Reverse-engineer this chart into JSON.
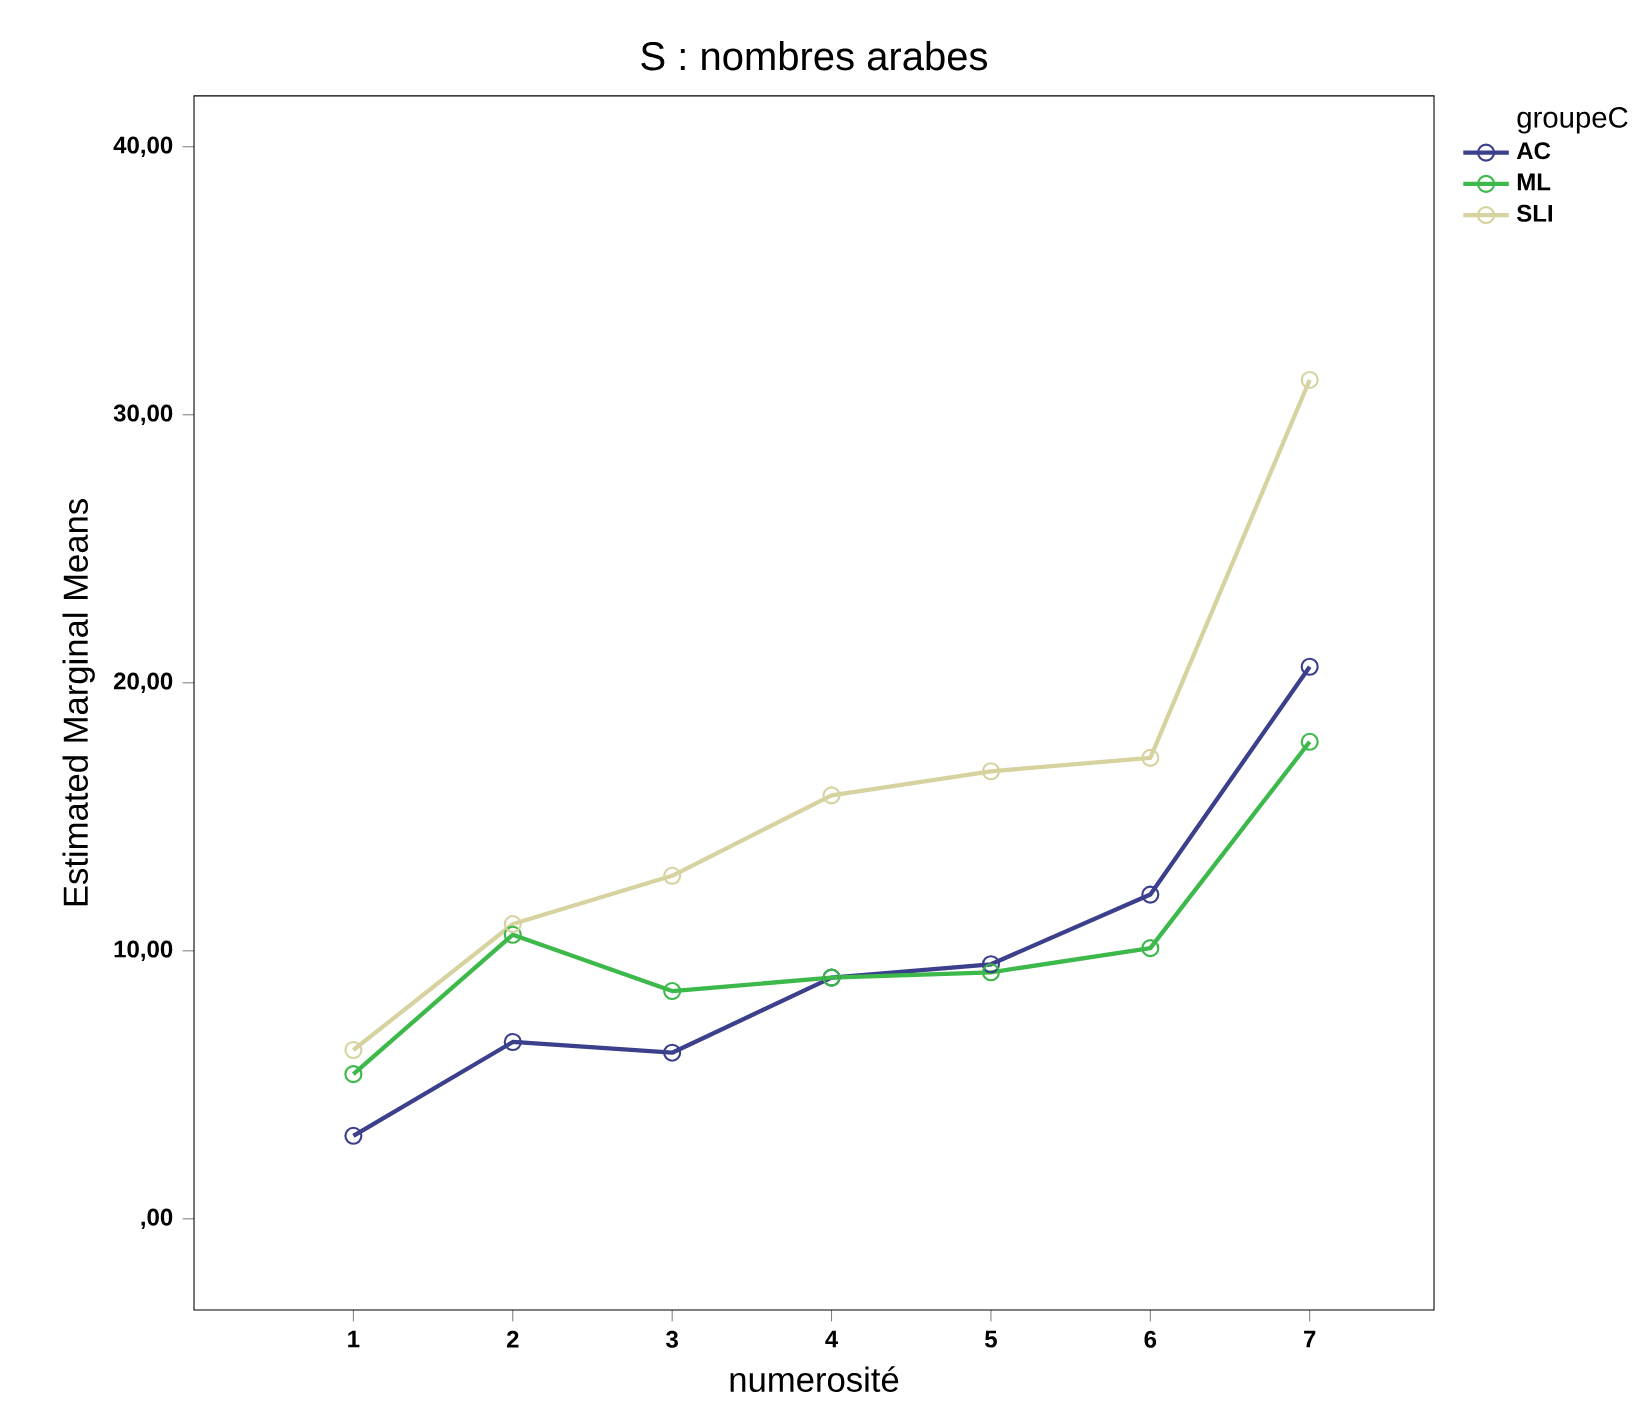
{
  "chart_data": {
    "type": "line",
    "title": "S : nombres arabes",
    "xlabel": "numerosité",
    "ylabel": "Estimated Marginal Means",
    "legend_title": "groupeC",
    "categories": [
      "1",
      "2",
      "3",
      "4",
      "5",
      "6",
      "7"
    ],
    "series": [
      {
        "name": "AC",
        "color": "#3b3f8c",
        "values": [
          3.1,
          6.6,
          6.2,
          9.0,
          9.5,
          12.1,
          20.6
        ]
      },
      {
        "name": "ML",
        "color": "#3cb94a",
        "values": [
          5.4,
          10.6,
          8.5,
          9.0,
          9.2,
          10.1,
          17.8
        ]
      },
      {
        "name": "SLI",
        "color": "#d6d3a0",
        "values": [
          6.3,
          11.0,
          12.8,
          15.8,
          16.7,
          17.2,
          31.3
        ]
      }
    ],
    "ylim": [
      -3.4,
      41.9
    ],
    "yticks": [
      {
        "value": 0,
        "label": ",00"
      },
      {
        "value": 10,
        "label": "10,00"
      },
      {
        "value": 20,
        "label": "20,00"
      },
      {
        "value": 30,
        "label": "30,00"
      },
      {
        "value": 40,
        "label": "40,00"
      }
    ],
    "grid": false,
    "legend": "top right",
    "marker": "circle",
    "line_style": "solid"
  }
}
